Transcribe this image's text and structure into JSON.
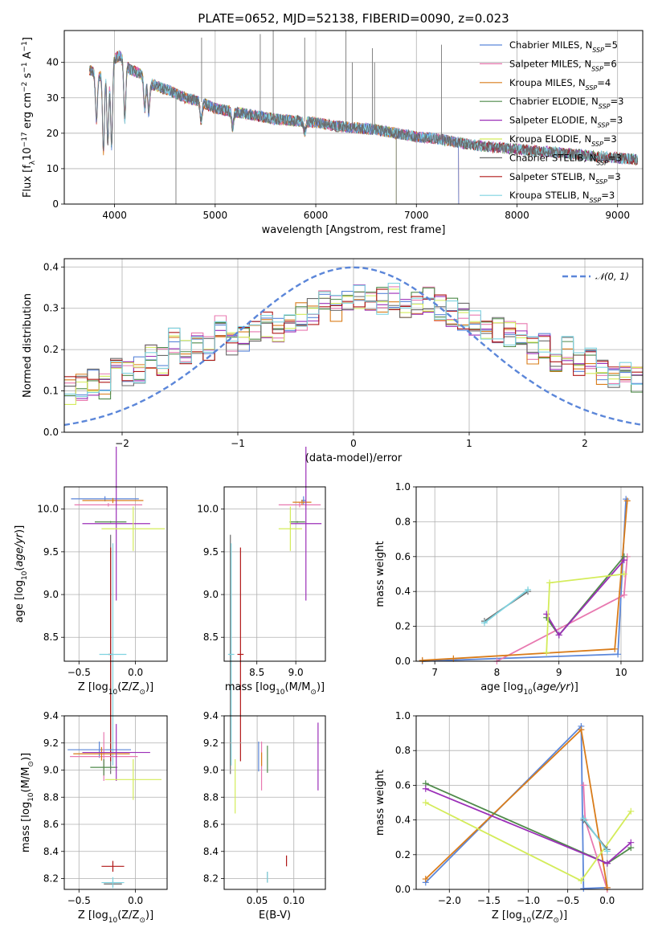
{
  "colors": {
    "Chabrier MILES": "#5b86d9",
    "Salpeter MILES": "#e879b0",
    "Kroupa MILES": "#d97c1a",
    "Chabrier ELODIE": "#4f8a4a",
    "Salpeter ELODIE": "#9b2fb8",
    "Kroupa ELODIE": "#d4ec5a",
    "Chabrier STELIB": "#6a6a6a",
    "Salpeter STELIB": "#b01818",
    "Kroupa STELIB": "#7fd3e0",
    "normal": "#5b86d9"
  },
  "chart_data": [
    {
      "id": "spectrum",
      "type": "line",
      "title": "PLATE=0652, MJD=52138, FIBERID=0090, z=0.023",
      "xlabel": "wavelength [Angstrom, rest frame]",
      "ylabel": "Flux [fλ10⁻¹⁷ erg cm⁻² s⁻¹ A⁻¹]",
      "xlim": [
        3500,
        9250
      ],
      "ylim": [
        0,
        49
      ],
      "xticks": [
        "4000",
        "5000",
        "6000",
        "7000",
        "8000",
        "9000"
      ],
      "yticks": [
        "0",
        "10",
        "20",
        "30",
        "40"
      ],
      "legend_position": "top-right",
      "legend": [
        {
          "series": "Chabrier MILES",
          "label": "Chabrier MILES, N",
          "sub": "SSP",
          "tail": "=5"
        },
        {
          "series": "Salpeter MILES",
          "label": "Salpeter MILES, N",
          "sub": "SSP",
          "tail": "=6"
        },
        {
          "series": "Kroupa MILES",
          "label": "Kroupa MILES, N",
          "sub": "SSP",
          "tail": "=4"
        },
        {
          "series": "Chabrier ELODIE",
          "label": "Chabrier ELODIE, N",
          "sub": "SSP",
          "tail": "=3"
        },
        {
          "series": "Salpeter ELODIE",
          "label": "Salpeter ELODIE, N",
          "sub": "SSP",
          "tail": "=3"
        },
        {
          "series": "Kroupa ELODIE",
          "label": "Kroupa ELODIE, N",
          "sub": "SSP",
          "tail": "=3"
        },
        {
          "series": "Chabrier STELIB",
          "label": "Chabrier STELIB, N",
          "sub": "SSP",
          "tail": "=3"
        },
        {
          "series": "Salpeter STELIB",
          "label": "Salpeter STELIB, N",
          "sub": "SSP",
          "tail": "=3"
        },
        {
          "series": "Kroupa STELIB",
          "label": "Kroupa STELIB, N",
          "sub": "SSP",
          "tail": "=3"
        }
      ],
      "continuum": [
        [
          3750,
          38
        ],
        [
          3850,
          36
        ],
        [
          3950,
          40
        ],
        [
          4050,
          42
        ],
        [
          4150,
          38
        ],
        [
          4250,
          37
        ],
        [
          4350,
          34
        ],
        [
          4450,
          33
        ],
        [
          4550,
          32
        ],
        [
          4700,
          30
        ],
        [
          4850,
          29
        ],
        [
          5000,
          27
        ],
        [
          5200,
          26
        ],
        [
          5400,
          25
        ],
        [
          5600,
          24
        ],
        [
          5800,
          23.5
        ],
        [
          6000,
          23
        ],
        [
          6200,
          22
        ],
        [
          6400,
          21.5
        ],
        [
          6600,
          21
        ],
        [
          6800,
          20
        ],
        [
          7000,
          19
        ],
        [
          7200,
          18.5
        ],
        [
          7400,
          17.5
        ],
        [
          7600,
          16.5
        ],
        [
          7800,
          16
        ],
        [
          8000,
          15.5
        ],
        [
          8200,
          15
        ],
        [
          8400,
          14.5
        ],
        [
          8600,
          14
        ],
        [
          8800,
          13.5
        ],
        [
          9000,
          13
        ],
        [
          9200,
          12.5
        ]
      ],
      "absorption": [
        [
          3820,
          22
        ],
        [
          3890,
          12
        ],
        [
          3933,
          15
        ],
        [
          3970,
          14
        ],
        [
          4102,
          22
        ],
        [
          4300,
          26
        ],
        [
          4340,
          25
        ],
        [
          4861,
          23
        ],
        [
          5175,
          21
        ],
        [
          5890,
          20
        ]
      ],
      "cutoffs": [
        {
          "series": "Kroupa ELODIE",
          "x": 6800
        },
        {
          "series": "Kroupa MILES",
          "x": 7420
        },
        {
          "series": "Salpeter MILES",
          "x": 7420
        },
        {
          "series": "Chabrier MILES",
          "x": 7420
        }
      ]
    },
    {
      "id": "residuals",
      "type": "line",
      "xlabel": "(data-model)/error",
      "ylabel": "Normed distribution",
      "xlim": [
        -2.5,
        2.5
      ],
      "ylim": [
        0,
        0.42
      ],
      "xticks": [
        "−2",
        "−1",
        "0",
        "1",
        "2"
      ],
      "yticks": [
        "0.0",
        "0.1",
        "0.2",
        "0.3",
        "0.4"
      ],
      "legend_position": "top-right",
      "normal_label": "𝒩(0, 1)",
      "bin_edges": [
        -2.5,
        2.5
      ],
      "bin_count": 50,
      "base_values": [
        0.1,
        0.11,
        0.12,
        0.11,
        0.15,
        0.14,
        0.15,
        0.18,
        0.17,
        0.22,
        0.19,
        0.21,
        0.2,
        0.25,
        0.22,
        0.23,
        0.24,
        0.26,
        0.25,
        0.27,
        0.28,
        0.29,
        0.31,
        0.3,
        0.32,
        0.33,
        0.31,
        0.32,
        0.33,
        0.3,
        0.31,
        0.32,
        0.3,
        0.29,
        0.28,
        0.27,
        0.26,
        0.25,
        0.24,
        0.24,
        0.2,
        0.21,
        0.18,
        0.2,
        0.17,
        0.17,
        0.15,
        0.14,
        0.14,
        0.13
      ]
    },
    {
      "id": "age-vs-Z",
      "type": "scatter",
      "xlabel": "Z [log10(Z/Z⊙)]",
      "ylabel": "age  [log10(age/yr)]",
      "xlim": [
        -0.63,
        0.28
      ],
      "ylim": [
        8.22,
        10.26
      ],
      "xticks": [
        "−0.5",
        "0.0"
      ],
      "yticks": [
        "8.5",
        "9.0",
        "9.5",
        "10.0"
      ]
    },
    {
      "id": "age-vs-mass",
      "type": "scatter",
      "xlabel": "mass [log10(M/M⊙)]",
      "ylabel": "",
      "xlim": [
        8.08,
        9.38
      ],
      "ylim": [
        8.22,
        10.26
      ],
      "xticks": [
        "8.5",
        "9.0"
      ],
      "yticks": [
        "8.5",
        "9.0",
        "9.5",
        "10.0"
      ]
    },
    {
      "id": "weight-vs-age",
      "type": "line",
      "xlabel": "age  [log10(age/yr)]",
      "ylabel": "mass weight",
      "xlim": [
        6.7,
        10.35
      ],
      "ylim": [
        0,
        1.0
      ],
      "xticks": [
        "7",
        "8",
        "9",
        "10"
      ],
      "yticks": [
        "0.0",
        "0.2",
        "0.4",
        "0.6",
        "0.8",
        "1.0"
      ],
      "series": [
        {
          "name": "Chabrier MILES",
          "points": [
            [
              6.8,
              0.0
            ],
            [
              9.95,
              0.04
            ],
            [
              10.08,
              0.93
            ]
          ]
        },
        {
          "name": "Salpeter MILES",
          "points": [
            [
              8.0,
              0.0
            ],
            [
              10.05,
              0.38
            ],
            [
              10.1,
              0.6
            ]
          ]
        },
        {
          "name": "Kroupa MILES",
          "points": [
            [
              6.8,
              0.005
            ],
            [
              7.3,
              0.015
            ],
            [
              9.9,
              0.07
            ],
            [
              10.1,
              0.92
            ]
          ]
        },
        {
          "name": "Chabrier ELODIE",
          "points": [
            [
              8.8,
              0.25
            ],
            [
              9.0,
              0.15
            ],
            [
              10.05,
              0.6
            ]
          ]
        },
        {
          "name": "Salpeter ELODIE",
          "points": [
            [
              8.8,
              0.27
            ],
            [
              9.0,
              0.15
            ],
            [
              10.05,
              0.58
            ]
          ]
        },
        {
          "name": "Kroupa ELODIE",
          "points": [
            [
              8.8,
              0.05
            ],
            [
              8.85,
              0.45
            ],
            [
              10.05,
              0.5
            ]
          ]
        },
        {
          "name": "Chabrier STELIB",
          "points": [
            [
              7.8,
              0.23
            ],
            [
              8.5,
              0.4
            ]
          ]
        },
        {
          "name": "Kroupa STELIB",
          "points": [
            [
              7.8,
              0.22
            ],
            [
              8.5,
              0.41
            ]
          ]
        }
      ]
    },
    {
      "id": "mass-vs-Z",
      "type": "scatter",
      "xlabel": "Z [log10(Z/Z⊙)]",
      "ylabel": "mass [log10(M/M⊙)]",
      "xlim": [
        -0.63,
        0.28
      ],
      "ylim": [
        8.12,
        9.4
      ],
      "xticks": [
        "−0.5",
        "0.0"
      ],
      "yticks": [
        "8.2",
        "8.4",
        "8.6",
        "8.8",
        "9.0",
        "9.2",
        "9.4"
      ]
    },
    {
      "id": "mass-vs-EBV",
      "type": "scatter",
      "xlabel": "E(B-V)",
      "ylabel": "",
      "xlim": [
        0.005,
        0.143
      ],
      "ylim": [
        8.12,
        9.4
      ],
      "xticks": [
        "0.05",
        "0.10"
      ],
      "yticks": [
        "8.2",
        "8.4",
        "8.6",
        "8.8",
        "9.0",
        "9.2",
        "9.4"
      ]
    },
    {
      "id": "weight-vs-Z",
      "type": "line",
      "xlabel": "Z [log10(Z/Z⊙)]",
      "ylabel": "mass weight",
      "xlim": [
        -2.42,
        0.45
      ],
      "ylim": [
        0,
        1.0
      ],
      "xticks": [
        "−2.0",
        "−1.5",
        "−1.0",
        "−0.5",
        "0.0"
      ],
      "yticks": [
        "0.0",
        "0.2",
        "0.4",
        "0.6",
        "0.8",
        "1.0"
      ],
      "series": [
        {
          "name": "Chabrier MILES",
          "points": [
            [
              -2.3,
              0.04
            ],
            [
              -0.33,
              0.94
            ],
            [
              -0.3,
              0.005
            ],
            [
              0.0,
              0.01
            ]
          ]
        },
        {
          "name": "Salpeter MILES",
          "points": [
            [
              -0.3,
              0.6
            ],
            [
              -0.28,
              0.4
            ],
            [
              0.0,
              0.0
            ]
          ]
        },
        {
          "name": "Kroupa MILES",
          "points": [
            [
              -2.3,
              0.06
            ],
            [
              -0.33,
              0.92
            ],
            [
              0.0,
              0.01
            ]
          ]
        },
        {
          "name": "Chabrier ELODIE",
          "points": [
            [
              -2.3,
              0.61
            ],
            [
              0.0,
              0.15
            ],
            [
              0.3,
              0.24
            ]
          ]
        },
        {
          "name": "Salpeter ELODIE",
          "points": [
            [
              -2.3,
              0.58
            ],
            [
              0.0,
              0.15
            ],
            [
              0.3,
              0.27
            ]
          ]
        },
        {
          "name": "Kroupa ELODIE",
          "points": [
            [
              -2.3,
              0.5
            ],
            [
              -0.33,
              0.05
            ],
            [
              0.3,
              0.45
            ]
          ]
        },
        {
          "name": "Chabrier STELIB",
          "points": [
            [
              -0.3,
              0.4
            ],
            [
              0.0,
              0.23
            ]
          ]
        },
        {
          "name": "Kroupa STELIB",
          "points": [
            [
              -0.3,
              0.41
            ],
            [
              0.0,
              0.22
            ]
          ]
        }
      ]
    }
  ],
  "errorbars": {
    "age-vs-Z": [
      {
        "name": "Chabrier MILES",
        "x": -0.27,
        "y": 10.12,
        "dx": 0.3,
        "dy": 0.03
      },
      {
        "name": "Salpeter MILES",
        "x": -0.24,
        "y": 10.05,
        "dx": 0.3,
        "dy": 0.02
      },
      {
        "name": "Kroupa MILES",
        "x": -0.2,
        "y": 10.1,
        "dx": 0.27,
        "dy": 0.03
      },
      {
        "name": "Chabrier ELODIE",
        "x": -0.22,
        "y": 9.85,
        "dx": 0.14,
        "dy": 0.01
      },
      {
        "name": "Salpeter ELODIE",
        "x": -0.17,
        "y": 9.83,
        "dx": 0.3,
        "dy": 0.9
      },
      {
        "name": "Kroupa ELODIE",
        "x": -0.02,
        "y": 9.77,
        "dx": 0.28,
        "dy": 0.26
      },
      {
        "name": "Chabrier STELIB",
        "x": -0.22,
        "y": 8.3,
        "dx": 0.02,
        "dy": 1.4
      },
      {
        "name": "Salpeter STELIB",
        "x": -0.22,
        "y": 8.3,
        "dx": 0.02,
        "dy": 1.25
      },
      {
        "name": "Kroupa STELIB",
        "x": -0.2,
        "y": 8.3,
        "dx": 0.12,
        "dy": 1.3
      }
    ],
    "age-vs-mass": [
      {
        "name": "Chabrier MILES",
        "x": 9.1,
        "y": 10.1,
        "dx": 0.03,
        "dy": 0.05
      },
      {
        "name": "Salpeter MILES",
        "x": 9.05,
        "y": 10.05,
        "dx": 0.27,
        "dy": 0.03
      },
      {
        "name": "Kroupa MILES",
        "x": 9.08,
        "y": 10.08,
        "dx": 0.12,
        "dy": 0.03
      },
      {
        "name": "Chabrier ELODIE",
        "x": 9.02,
        "y": 9.85,
        "dx": 0.1,
        "dy": 0.01
      },
      {
        "name": "Salpeter ELODIE",
        "x": 9.13,
        "y": 9.83,
        "dx": 0.2,
        "dy": 0.9
      },
      {
        "name": "Kroupa ELODIE",
        "x": 8.93,
        "y": 9.77,
        "dx": 0.15,
        "dy": 0.26
      },
      {
        "name": "Chabrier STELIB",
        "x": 8.16,
        "y": 8.3,
        "dx": 0.02,
        "dy": 1.4
      },
      {
        "name": "Salpeter STELIB",
        "x": 8.29,
        "y": 8.3,
        "dx": 0.04,
        "dy": 1.25
      },
      {
        "name": "Kroupa STELIB",
        "x": 8.17,
        "y": 8.3,
        "dx": 0.04,
        "dy": 1.3
      }
    ],
    "mass-vs-Z": [
      {
        "name": "Chabrier MILES",
        "x": -0.32,
        "y": 9.15,
        "dx": 0.28,
        "dy": 0.06
      },
      {
        "name": "Salpeter MILES",
        "x": -0.28,
        "y": 9.1,
        "dx": 0.3,
        "dy": 0.18
      },
      {
        "name": "Kroupa MILES",
        "x": -0.3,
        "y": 9.12,
        "dx": 0.25,
        "dy": 0.05
      },
      {
        "name": "Chabrier ELODIE",
        "x": -0.28,
        "y": 9.02,
        "dx": 0.12,
        "dy": 0.06
      },
      {
        "name": "Salpeter ELODIE",
        "x": -0.17,
        "y": 9.13,
        "dx": 0.3,
        "dy": 0.21
      },
      {
        "name": "Kroupa ELODIE",
        "x": -0.02,
        "y": 8.93,
        "dx": 0.25,
        "dy": 0.15
      },
      {
        "name": "Chabrier STELIB",
        "x": -0.2,
        "y": 8.16,
        "dx": 0.08,
        "dy": 0.02
      },
      {
        "name": "Salpeter STELIB",
        "x": -0.2,
        "y": 8.29,
        "dx": 0.1,
        "dy": 0.04
      },
      {
        "name": "Kroupa STELIB",
        "x": -0.2,
        "y": 8.17,
        "dx": 0.1,
        "dy": 0.04
      }
    ],
    "mass-vs-EBV": [
      {
        "name": "Chabrier MILES",
        "x": 0.052,
        "y": 9.1,
        "dx": 0.0,
        "dy": 0.11
      },
      {
        "name": "Salpeter MILES",
        "x": 0.056,
        "y": 9.03,
        "dx": 0.0,
        "dy": 0.18
      },
      {
        "name": "Kroupa MILES",
        "x": 0.056,
        "y": 9.08,
        "dx": 0.0,
        "dy": 0.05
      },
      {
        "name": "Chabrier ELODIE",
        "x": 0.064,
        "y": 9.08,
        "dx": 0.0,
        "dy": 0.1
      },
      {
        "name": "Salpeter ELODIE",
        "x": 0.133,
        "y": 9.1,
        "dx": 0.0,
        "dy": 0.25
      },
      {
        "name": "Kroupa ELODIE",
        "x": 0.02,
        "y": 8.88,
        "dx": 0.0,
        "dy": 0.2
      },
      {
        "name": "Chabrier STELIB",
        "x": 0.064,
        "y": 8.21,
        "dx": 0.0,
        "dy": 0.04
      },
      {
        "name": "Salpeter STELIB",
        "x": 0.09,
        "y": 8.33,
        "dx": 0.0,
        "dy": 0.04
      },
      {
        "name": "Kroupa STELIB",
        "x": 0.064,
        "y": 8.21,
        "dx": 0.0,
        "dy": 0.04
      }
    ]
  }
}
